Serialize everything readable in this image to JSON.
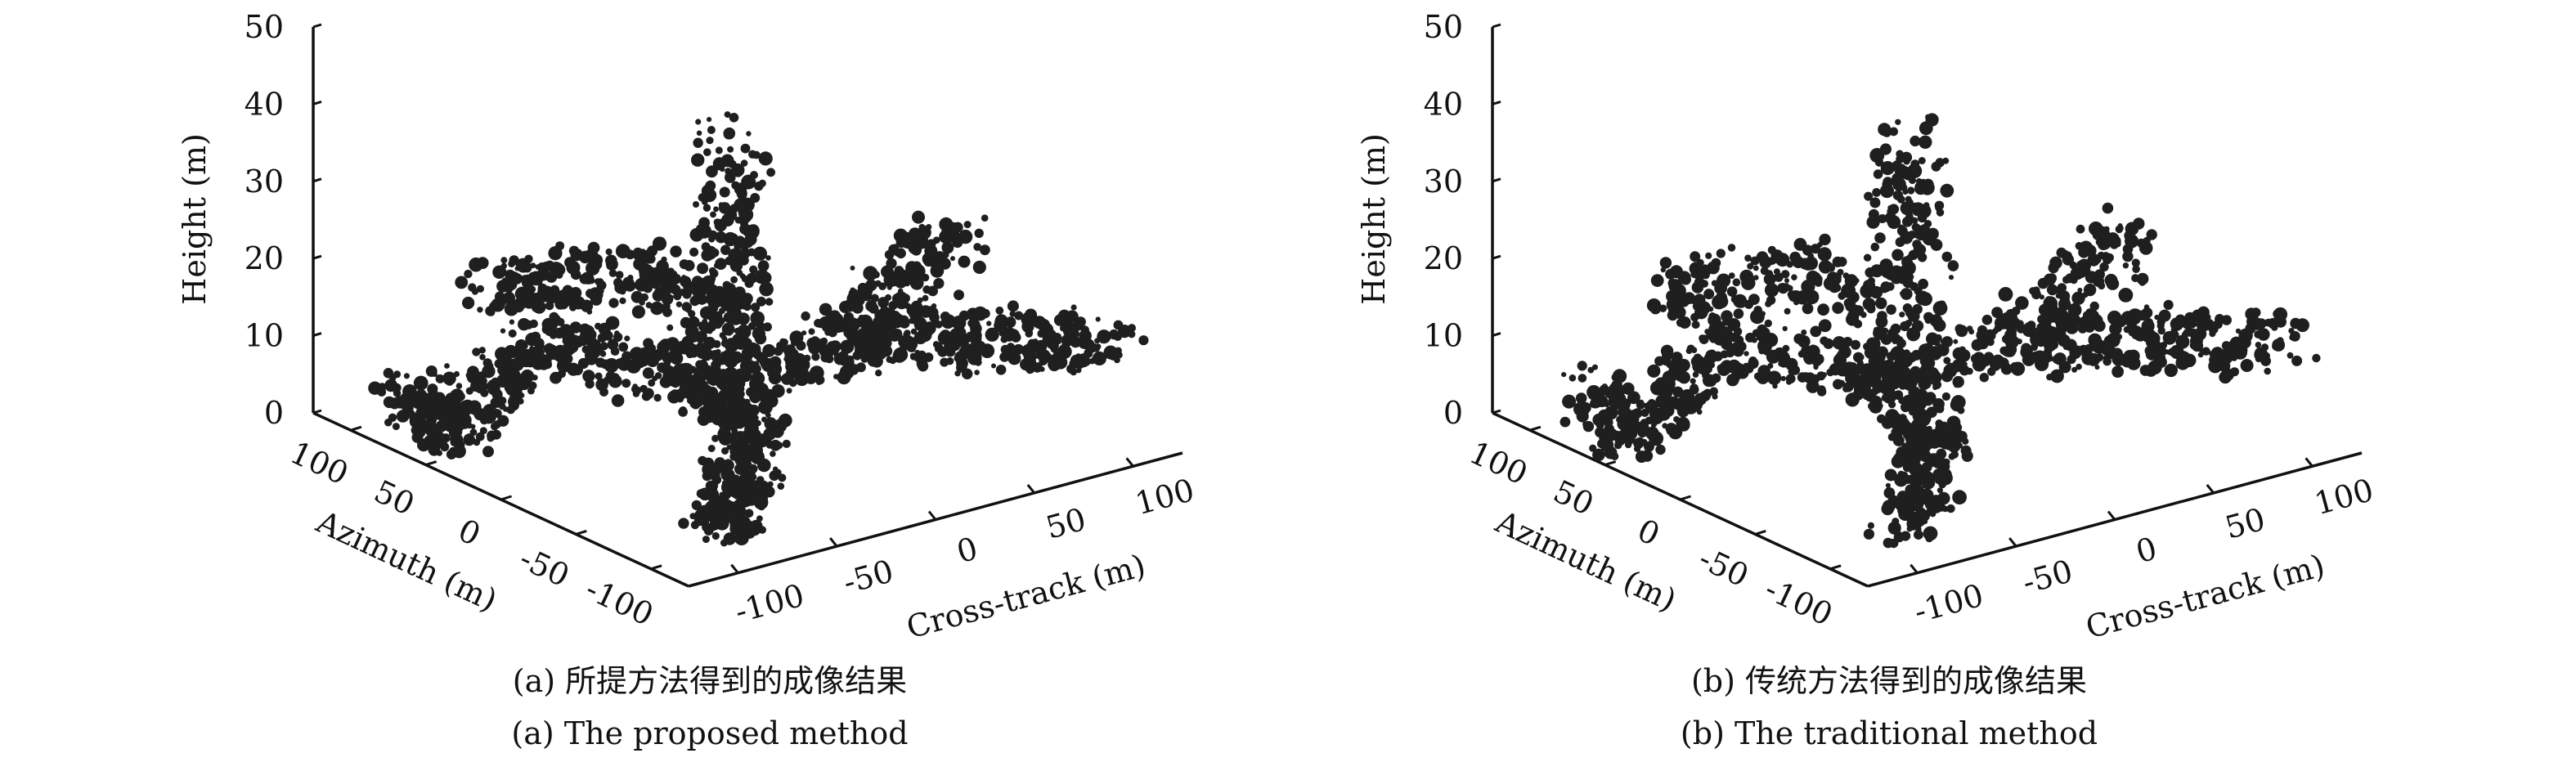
{
  "chart_data": [
    {
      "type": "scatter",
      "subtype": "3d-point-cloud",
      "caption_zh": "(a) 所提方法得到的成像结果",
      "caption_en": "(a) The proposed method",
      "xlabel": "Cross-track (m)",
      "ylabel": "Azimuth (m)",
      "zlabel": "Height (m)",
      "xlim": [
        -125,
        125
      ],
      "ylim": [
        -125,
        125
      ],
      "zlim": [
        0,
        50
      ],
      "xticks": [
        "-100",
        "-50",
        "0",
        "50",
        "100"
      ],
      "xtick_values": [
        -100,
        -50,
        0,
        50,
        100
      ],
      "yticks": [
        "100",
        "50",
        "0",
        "-50",
        "-100"
      ],
      "ytick_values": [
        100,
        50,
        0,
        -50,
        -100
      ],
      "zticks": [
        "0",
        "10",
        "20",
        "30",
        "40",
        "50"
      ],
      "ztick_values": [
        0,
        10,
        20,
        30,
        40,
        50
      ],
      "point_color": "#1f1f1f",
      "density": 1.0,
      "structures": [
        {
          "name": "tower",
          "points": [
            [
              9,
              25,
              35
            ],
            [
              5,
              15,
              12
            ]
          ]
        },
        {
          "name": "left-arm",
          "points": [
            [
              -100,
              92,
              5
            ],
            [
              -109,
              55,
              2
            ],
            [
              -44,
              77,
              8
            ],
            [
              -12,
              19,
              6
            ]
          ]
        },
        {
          "name": "upper-left",
          "points": [
            [
              -65,
              86,
              15
            ],
            [
              -20,
              46,
              18
            ],
            [
              5,
              15,
              12
            ]
          ]
        },
        {
          "name": "right-arm",
          "points": [
            [
              -12,
              19,
              6
            ],
            [
              52,
              4,
              8
            ],
            [
              103,
              -102,
              14
            ]
          ]
        },
        {
          "name": "right-top",
          "points": [
            [
              52,
              4,
              8
            ],
            [
              111,
              8,
              18
            ]
          ]
        },
        {
          "name": "bottom-branch",
          "points": [
            [
              -12,
              19,
              6
            ],
            [
              -21,
              -33,
              5
            ],
            [
              -79,
              -87,
              0
            ]
          ]
        }
      ]
    },
    {
      "type": "scatter",
      "subtype": "3d-point-cloud",
      "caption_zh": "(b) 传统方法得到的成像结果",
      "caption_en": "(b) The traditional method",
      "xlabel": "Cross-track (m)",
      "ylabel": "Azimuth (m)",
      "zlabel": "Height (m)",
      "xlim": [
        -125,
        125
      ],
      "ylim": [
        -125,
        125
      ],
      "zlim": [
        0,
        50
      ],
      "xticks": [
        "-100",
        "-50",
        "0",
        "50",
        "100"
      ],
      "xtick_values": [
        -100,
        -50,
        0,
        50,
        100
      ],
      "yticks": [
        "100",
        "50",
        "0",
        "-50",
        "-100"
      ],
      "ytick_values": [
        100,
        50,
        0,
        -50,
        -100
      ],
      "zticks": [
        "0",
        "10",
        "20",
        "30",
        "40",
        "50"
      ],
      "ztick_values": [
        0,
        10,
        20,
        30,
        40,
        50
      ],
      "point_color": "#1f1f1f",
      "density": 0.8,
      "structures": [
        {
          "name": "tower",
          "points": [
            [
              9,
              25,
              35
            ],
            [
              5,
              15,
              12
            ]
          ]
        },
        {
          "name": "left-arm",
          "points": [
            [
              -100,
              92,
              5
            ],
            [
              -109,
              55,
              2
            ],
            [
              -44,
              77,
              8
            ],
            [
              -12,
              19,
              6
            ]
          ]
        },
        {
          "name": "upper-left",
          "points": [
            [
              -65,
              86,
              15
            ],
            [
              -20,
              46,
              18
            ],
            [
              5,
              15,
              12
            ]
          ]
        },
        {
          "name": "right-arm",
          "points": [
            [
              -12,
              19,
              6
            ],
            [
              52,
              4,
              8
            ],
            [
              103,
              -102,
              14
            ]
          ]
        },
        {
          "name": "right-top",
          "points": [
            [
              52,
              4,
              8
            ],
            [
              111,
              8,
              18
            ]
          ]
        },
        {
          "name": "bottom-branch",
          "points": [
            [
              -12,
              19,
              6
            ],
            [
              -21,
              -33,
              5
            ],
            [
              -79,
              -87,
              0
            ]
          ]
        }
      ]
    }
  ]
}
